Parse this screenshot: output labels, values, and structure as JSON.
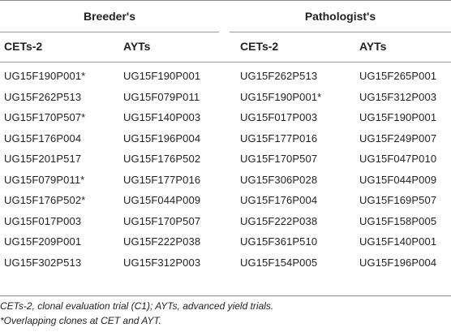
{
  "table": {
    "groups": [
      {
        "label": "Breeder's",
        "columns": [
          "CETs-2",
          "AYTs"
        ]
      },
      {
        "label": "Pathologist's",
        "columns": [
          "CETs-2",
          "AYTs"
        ]
      }
    ],
    "rows": [
      [
        "UG15F190P001*",
        "UG15F190P001",
        "UG15F262P513",
        "UG15F265P001"
      ],
      [
        "UG15F262P513",
        "UG15F079P011",
        "UG15F190P001*",
        "UG15F312P003"
      ],
      [
        "UG15F170P507*",
        "UG15F140P003",
        "UG15F017P003",
        "UG15F190P001"
      ],
      [
        "UG15F176P004",
        "UG15F196P004",
        "UG15F177P016",
        "UG15F249P007"
      ],
      [
        "UG15F201P517",
        "UG15F176P502",
        "UG15F170P507",
        "UG15F047P010"
      ],
      [
        "UG15F079P011*",
        "UG15F177P016",
        "UG15F306P028",
        "UG15F044P009"
      ],
      [
        "UG15F176P502*",
        "UG15F044P009",
        "UG15F176P004",
        "UG15F169P507"
      ],
      [
        "UG15F017P003",
        "UG15F170P507",
        "UG15F222P038",
        "UG15F158P005"
      ],
      [
        "UG15F209P001",
        "UG15F222P038",
        "UG15F361P510",
        "UG15F140P001"
      ],
      [
        "UG15F302P513",
        "UG15F312P003",
        "UG15F154P005",
        "UG15F196P004"
      ]
    ]
  },
  "footnotes": [
    "CETs-2, clonal evaluation trial (C1); AYTs, advanced yield trials.",
    "*Overlapping clones at CET and AYT."
  ]
}
